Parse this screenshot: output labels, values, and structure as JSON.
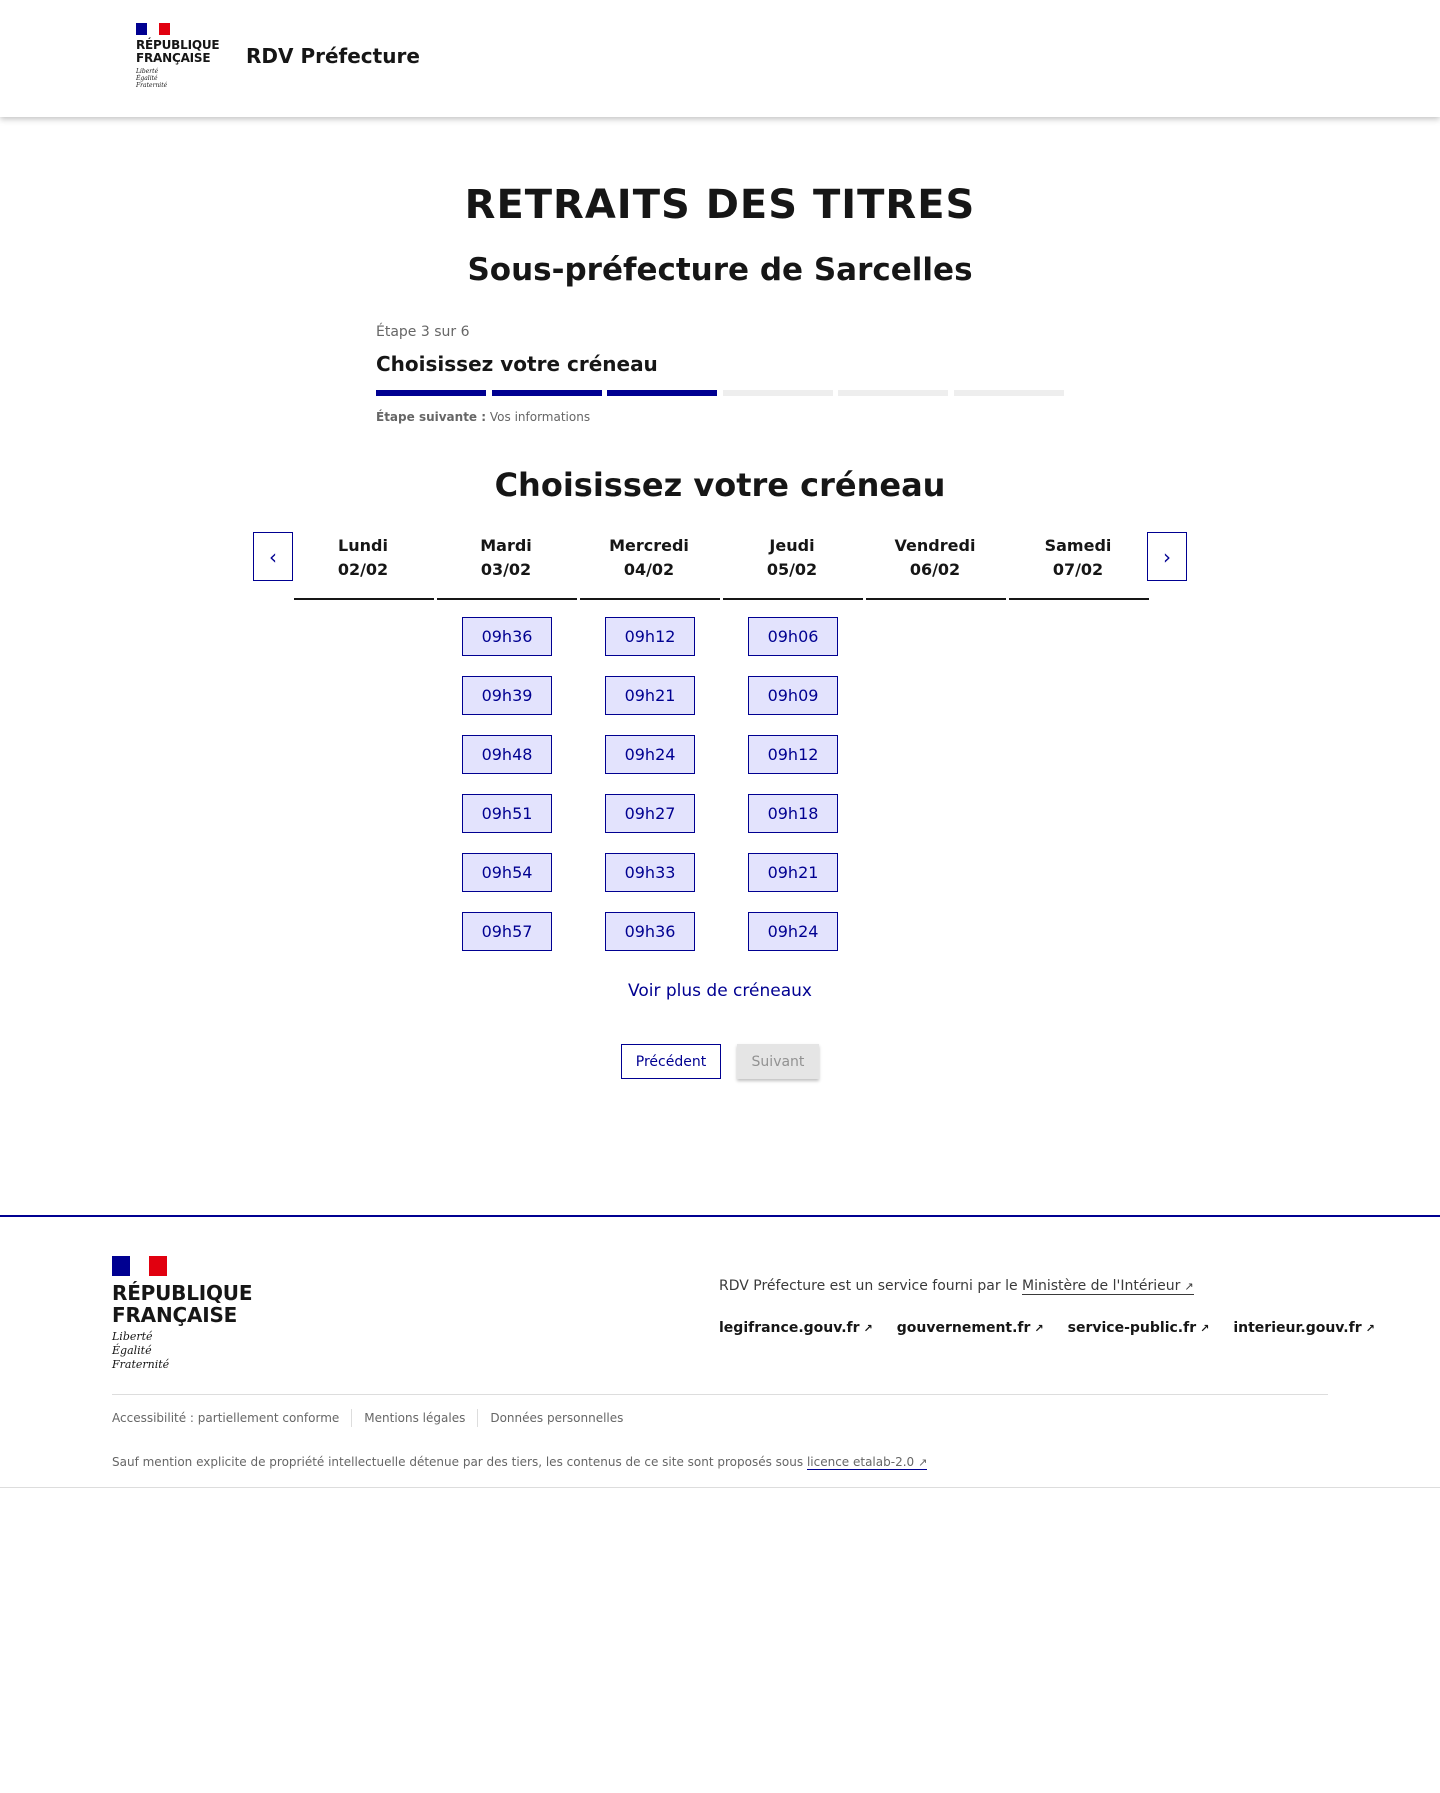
{
  "header": {
    "logo": {
      "line1": "RÉPUBLIQUE",
      "line2": "FRANÇAISE",
      "motto": [
        "Liberté",
        "Égalité",
        "Fraternité"
      ]
    },
    "site_title": "RDV Préfecture"
  },
  "main": {
    "title": "RETRAITS DES TITRES",
    "subtitle": "Sous-préfecture de Sarcelles",
    "stepper": {
      "step_label": "Étape 3 sur 6",
      "current_title": "Choisissez votre créneau",
      "current_step": 3,
      "total_steps": 6,
      "next_label": "Étape suivante :",
      "next_value": "Vos informations",
      "active_color": "#000091",
      "inactive_color": "#eeeeee"
    },
    "section_title": "Choisissez votre créneau",
    "days": [
      {
        "name": "Lundi",
        "date": "02/02",
        "slots": []
      },
      {
        "name": "Mardi",
        "date": "03/02",
        "slots": [
          "09h36",
          "09h39",
          "09h48",
          "09h51",
          "09h54",
          "09h57"
        ]
      },
      {
        "name": "Mercredi",
        "date": "04/02",
        "slots": [
          "09h12",
          "09h21",
          "09h24",
          "09h27",
          "09h33",
          "09h36"
        ]
      },
      {
        "name": "Jeudi",
        "date": "05/02",
        "slots": [
          "09h06",
          "09h09",
          "09h12",
          "09h18",
          "09h21",
          "09h24"
        ]
      },
      {
        "name": "Vendredi",
        "date": "06/02",
        "slots": []
      },
      {
        "name": "Samedi",
        "date": "07/02",
        "slots": []
      }
    ],
    "prev_icon": "chevron-left-icon",
    "next_icon": "chevron-right-icon",
    "more_slots": "Voir plus de créneaux",
    "prev_button": "Précédent",
    "next_button": "Suivant"
  },
  "footer": {
    "logo": {
      "line1": "RÉPUBLIQUE",
      "line2": "FRANÇAISE",
      "motto": [
        "Liberté",
        "Égalité",
        "Fraternité"
      ]
    },
    "service_text": "RDV Préfecture est un service fourni par le",
    "service_link": "Ministère de l'Intérieur",
    "links": [
      "legifrance.gouv.fr",
      "gouvernement.fr",
      "service-public.fr",
      "interieur.gouv.fr"
    ],
    "bottom_links": [
      "Accessibilité : partiellement conforme",
      "Mentions légales",
      "Données personnelles"
    ],
    "license_text": "Sauf mention explicite de propriété intellectuelle détenue par des tiers, les contenus de ce site sont proposés sous",
    "license_link": "licence etalab-2.0"
  }
}
